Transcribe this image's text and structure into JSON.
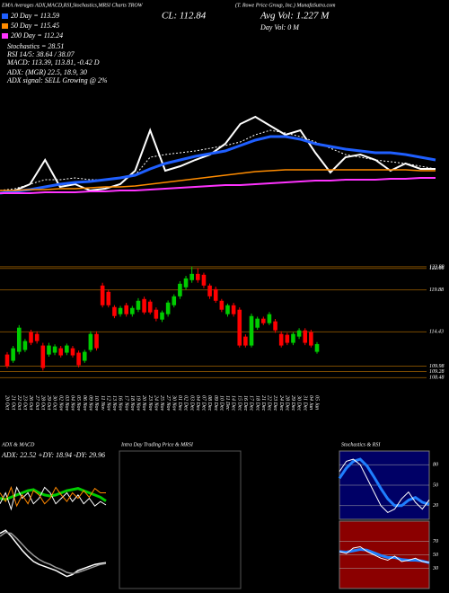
{
  "header": {
    "strip": "EMA Averages ADX,MACD,RSI,Stochastics,MRSI Charts TROW",
    "company": "(T. Rowe Price Group, Inc.) MunafaSutra.com",
    "close": "CL: 112.84",
    "avg_vol": "Avg Vol: 1.227 M",
    "day_vol": "Day Vol: 0  M",
    "stochastics": "Stochastics = 28.51",
    "rsi": "RSI 14/5: 38.64 / 38.07",
    "macd": "MACD: 113.39, 113.81, -0.42 D",
    "adx": "ADX:            (MGR) 22.5, 18.9, 30",
    "adx_signal": "ADX  signal: SELL Growing @ 2%"
  },
  "chart_data": [
    {
      "type": "candlestick",
      "categories": [
        "20 Oct",
        "21 Oct",
        "22 Oct",
        "23 Oct",
        "26 Oct",
        "27 Oct",
        "28 Oct",
        "29 Oct",
        "30 Oct",
        "02 Nov",
        "03 Nov",
        "04 Nov",
        "05 Nov",
        "06 Nov",
        "09 Nov",
        "10 Nov",
        "11 Nov",
        "12 Nov",
        "13 Nov",
        "16 Nov",
        "17 Nov",
        "18 Nov",
        "19 Nov",
        "20 Nov",
        "23 Nov",
        "24 Nov",
        "25 Nov",
        "27 Nov",
        "30 Nov",
        "01 Dec",
        "02 Dec",
        "03 Dec",
        "04 Dec",
        "07 Dec",
        "08 Dec",
        "09 Dec",
        "10 Dec",
        "11 Dec",
        "14 Dec",
        "15 Dec",
        "16 Dec",
        "17 Dec",
        "18 Dec",
        "21 Dec",
        "22 Dec",
        "23 Dec",
        "24 Dec",
        "28 Dec",
        "29 Dec",
        "30 Dec",
        "31 Dec",
        "04 Jan",
        "05 Jan"
      ],
      "open": [
        111.48,
        110.67,
        111.83,
        112.07,
        114.39,
        114.16,
        112.65,
        111.48,
        111.72,
        112.3,
        111.72,
        112.3,
        111.72,
        110.67,
        112.07,
        114.16,
        120.44,
        119.62,
        117.65,
        116.72,
        117.88,
        116.72,
        117.3,
        118.69,
        118.35,
        117.3,
        116.02,
        116.72,
        117.88,
        119.04,
        120.21,
        121.14,
        121.95,
        121.84,
        120.44,
        119.97,
        118.46,
        116.72,
        117.88,
        117.3,
        113.81,
        112.65,
        114.97,
        116.14,
        115.55,
        115.79,
        114.16,
        114.04,
        113,
        113.81,
        114.62,
        114.39,
        111.83
      ],
      "high": [
        111.8,
        112.6,
        115.3,
        113.5,
        114.7,
        114.5,
        113,
        113,
        112.8,
        112.6,
        112.9,
        112.6,
        112,
        112.1,
        114.5,
        114.5,
        120.8,
        119.9,
        117.9,
        117.8,
        118.2,
        117.8,
        118.8,
        119,
        118.6,
        117.6,
        117.2,
        118.5,
        119.3,
        121,
        121.7,
        122.9,
        122.7,
        122.1,
        120.7,
        120.3,
        118.7,
        118.1,
        118.2,
        117.6,
        114.1,
        116.8,
        116.4,
        116.4,
        117,
        116.1,
        114.5,
        114.3,
        114.4,
        114.9,
        114.9,
        114.7,
        113.1
      ],
      "low": [
        109.7,
        110.4,
        111.5,
        111.8,
        112.7,
        112.9,
        109.4,
        111.2,
        111.4,
        111.1,
        111.4,
        111.1,
        109.8,
        110.4,
        111.8,
        112,
        117.6,
        117.6,
        116.2,
        116.4,
        116.4,
        116.4,
        117,
        116.7,
        116.7,
        115.8,
        115.7,
        116.4,
        117.6,
        118.7,
        119.9,
        120.8,
        120.8,
        120.1,
        118.7,
        118.2,
        117,
        116.4,
        116.4,
        112.4,
        112.4,
        112.4,
        114.7,
        115.3,
        115.3,
        114.3,
        112.4,
        112.7,
        112.7,
        113.5,
        112.7,
        112.4,
        111.6
      ],
      "close": [
        109.97,
        112.3,
        114.97,
        113.23,
        113,
        113.23,
        109.74,
        112.65,
        112.53,
        111.37,
        112.65,
        111.37,
        110.09,
        111.83,
        114.16,
        112.3,
        117.88,
        117.88,
        116.48,
        117.53,
        116.72,
        117.53,
        118.46,
        116.95,
        116.95,
        116.14,
        116.95,
        118.23,
        119.04,
        120.67,
        121.37,
        121.95,
        121.14,
        120.44,
        119.04,
        118.46,
        117.3,
        117.88,
        116.72,
        112.65,
        112.65,
        116.48,
        116.14,
        115.55,
        116.72,
        114.62,
        112.65,
        113,
        114.16,
        114.62,
        113,
        112.65,
        112.84
      ],
      "ylim": [
        107,
        124.5
      ],
      "yticks": [
        122.88,
        122.66,
        119.88,
        114.43,
        109.98,
        109.28,
        108.48
      ],
      "up_color": "#00cc00",
      "down_color": "#ff0000",
      "grid_color": "#7a4a00"
    },
    {
      "type": "line",
      "ylim": [
        0,
        150
      ],
      "series": [
        {
          "color": "#ffffff",
          "width": 2,
          "values": [
            35,
            38,
            45,
            72,
            42,
            45,
            38,
            40,
            45,
            60,
            105,
            60,
            65,
            72,
            78,
            90,
            112,
            120,
            110,
            100,
            105,
            80,
            58,
            75,
            78,
            72,
            60,
            68,
            62,
            62
          ]
        },
        {
          "color": "#ffffff",
          "width": 1,
          "dashed": true,
          "values": [
            38,
            40,
            45,
            50,
            50,
            52,
            50,
            50,
            52,
            55,
            75,
            78,
            80,
            82,
            85,
            88,
            92,
            100,
            105,
            102,
            98,
            92,
            85,
            78,
            75,
            72,
            70,
            68,
            65,
            62
          ]
        },
        {
          "name": "20 Day = 113.59",
          "color": "#1f5fff",
          "width": 3,
          "values": [
            35,
            37,
            39,
            42,
            45,
            47,
            48,
            50,
            52,
            55,
            62,
            68,
            72,
            76,
            79,
            82,
            88,
            94,
            98,
            98,
            95,
            90,
            87,
            84,
            82,
            80,
            80,
            78,
            75,
            72
          ]
        },
        {
          "name": "50 Day = 115.45",
          "color": "#ff8c00",
          "width": 1.5,
          "values": [
            38,
            38,
            39,
            39,
            40,
            40,
            41,
            42,
            42,
            43,
            45,
            47,
            49,
            51,
            53,
            55,
            57,
            59,
            60,
            61,
            61,
            61,
            61,
            61,
            61,
            61,
            61,
            61,
            60,
            60
          ]
        },
        {
          "name": "200 Day = 112.24",
          "color": "#ff33ff",
          "width": 2,
          "values": [
            35,
            35,
            35,
            36,
            36,
            36,
            37,
            37,
            38,
            38,
            39,
            40,
            41,
            42,
            43,
            44,
            44,
            45,
            46,
            47,
            48,
            49,
            49,
            50,
            50,
            50,
            51,
            51,
            52,
            52
          ]
        }
      ]
    },
    {
      "type": "line",
      "title": "ADX  & MACD",
      "subtitle": "ADX: 22.52  +DY: 18.94  -DY: 29.96",
      "ylim": [
        0,
        60
      ],
      "series": [
        {
          "color": "#00cc00",
          "width": 3,
          "values": [
            25,
            24,
            26,
            28,
            30,
            32,
            33,
            30,
            28,
            27,
            28,
            30,
            32,
            33,
            34,
            32,
            30,
            28,
            26,
            22.52
          ]
        },
        {
          "color": "#ffffff",
          "width": 1,
          "values": [
            20,
            30,
            15,
            35,
            25,
            30,
            20,
            25,
            35,
            30,
            20,
            25,
            30,
            22,
            28,
            20,
            25,
            18,
            22,
            18.94
          ]
        },
        {
          "color": "#ff8800",
          "width": 1,
          "values": [
            30,
            22,
            35,
            18,
            28,
            20,
            32,
            28,
            20,
            25,
            35,
            28,
            22,
            30,
            25,
            32,
            26,
            34,
            30,
            29.96
          ]
        }
      ]
    },
    {
      "type": "line",
      "ylim": [
        -3,
        3
      ],
      "series": [
        {
          "color": "#ffffff",
          "width": 1.5,
          "values": [
            2.5,
            2.8,
            2.2,
            1.5,
            0.8,
            0.2,
            -0.3,
            -0.6,
            -0.8,
            -1,
            -1.2,
            -1.5,
            -1.8,
            -1.6,
            -1.2,
            -1,
            -0.8,
            -0.6,
            -0.5,
            -0.42
          ]
        },
        {
          "color": "#999999",
          "width": 1.5,
          "values": [
            2.2,
            2.6,
            2.5,
            2,
            1.4,
            0.8,
            0.3,
            -0.1,
            -0.4,
            -0.6,
            -0.9,
            -1.1,
            -1.4,
            -1.5,
            -1.4,
            -1.2,
            -1,
            -0.8,
            -0.6,
            -0.5
          ]
        }
      ]
    },
    {
      "type": "line",
      "title": "Intra  Day Trading Price  & MRSI",
      "border": "#555555",
      "series": []
    },
    {
      "type": "line",
      "title": "Stochastics  & RSI",
      "background": "#000066",
      "border": "#777777",
      "ylim": [
        0,
        100
      ],
      "yticks": [
        80,
        50,
        20
      ],
      "series": [
        {
          "color": "#1f7fff",
          "width": 3,
          "values": [
            60,
            75,
            85,
            88,
            78,
            62,
            45,
            30,
            20,
            20,
            28,
            32,
            25,
            22
          ]
        },
        {
          "color": "#ffffff",
          "width": 1,
          "values": [
            70,
            85,
            88,
            80,
            60,
            40,
            20,
            10,
            15,
            30,
            40,
            25,
            15,
            28.51
          ]
        }
      ]
    },
    {
      "type": "line",
      "background": "#8b0000",
      "border": "#777777",
      "ylim": [
        0,
        100
      ],
      "yticks": [
        70,
        50,
        30
      ],
      "series": [
        {
          "color": "#1f7fff",
          "width": 3,
          "values": [
            55,
            54,
            56,
            58,
            57,
            53,
            49,
            46,
            46,
            43,
            42,
            42,
            41,
            38.07
          ]
        },
        {
          "color": "#ffffff",
          "width": 1,
          "values": [
            55,
            52,
            60,
            62,
            55,
            50,
            45,
            42,
            48,
            40,
            42,
            45,
            40,
            38.64
          ]
        }
      ]
    }
  ]
}
